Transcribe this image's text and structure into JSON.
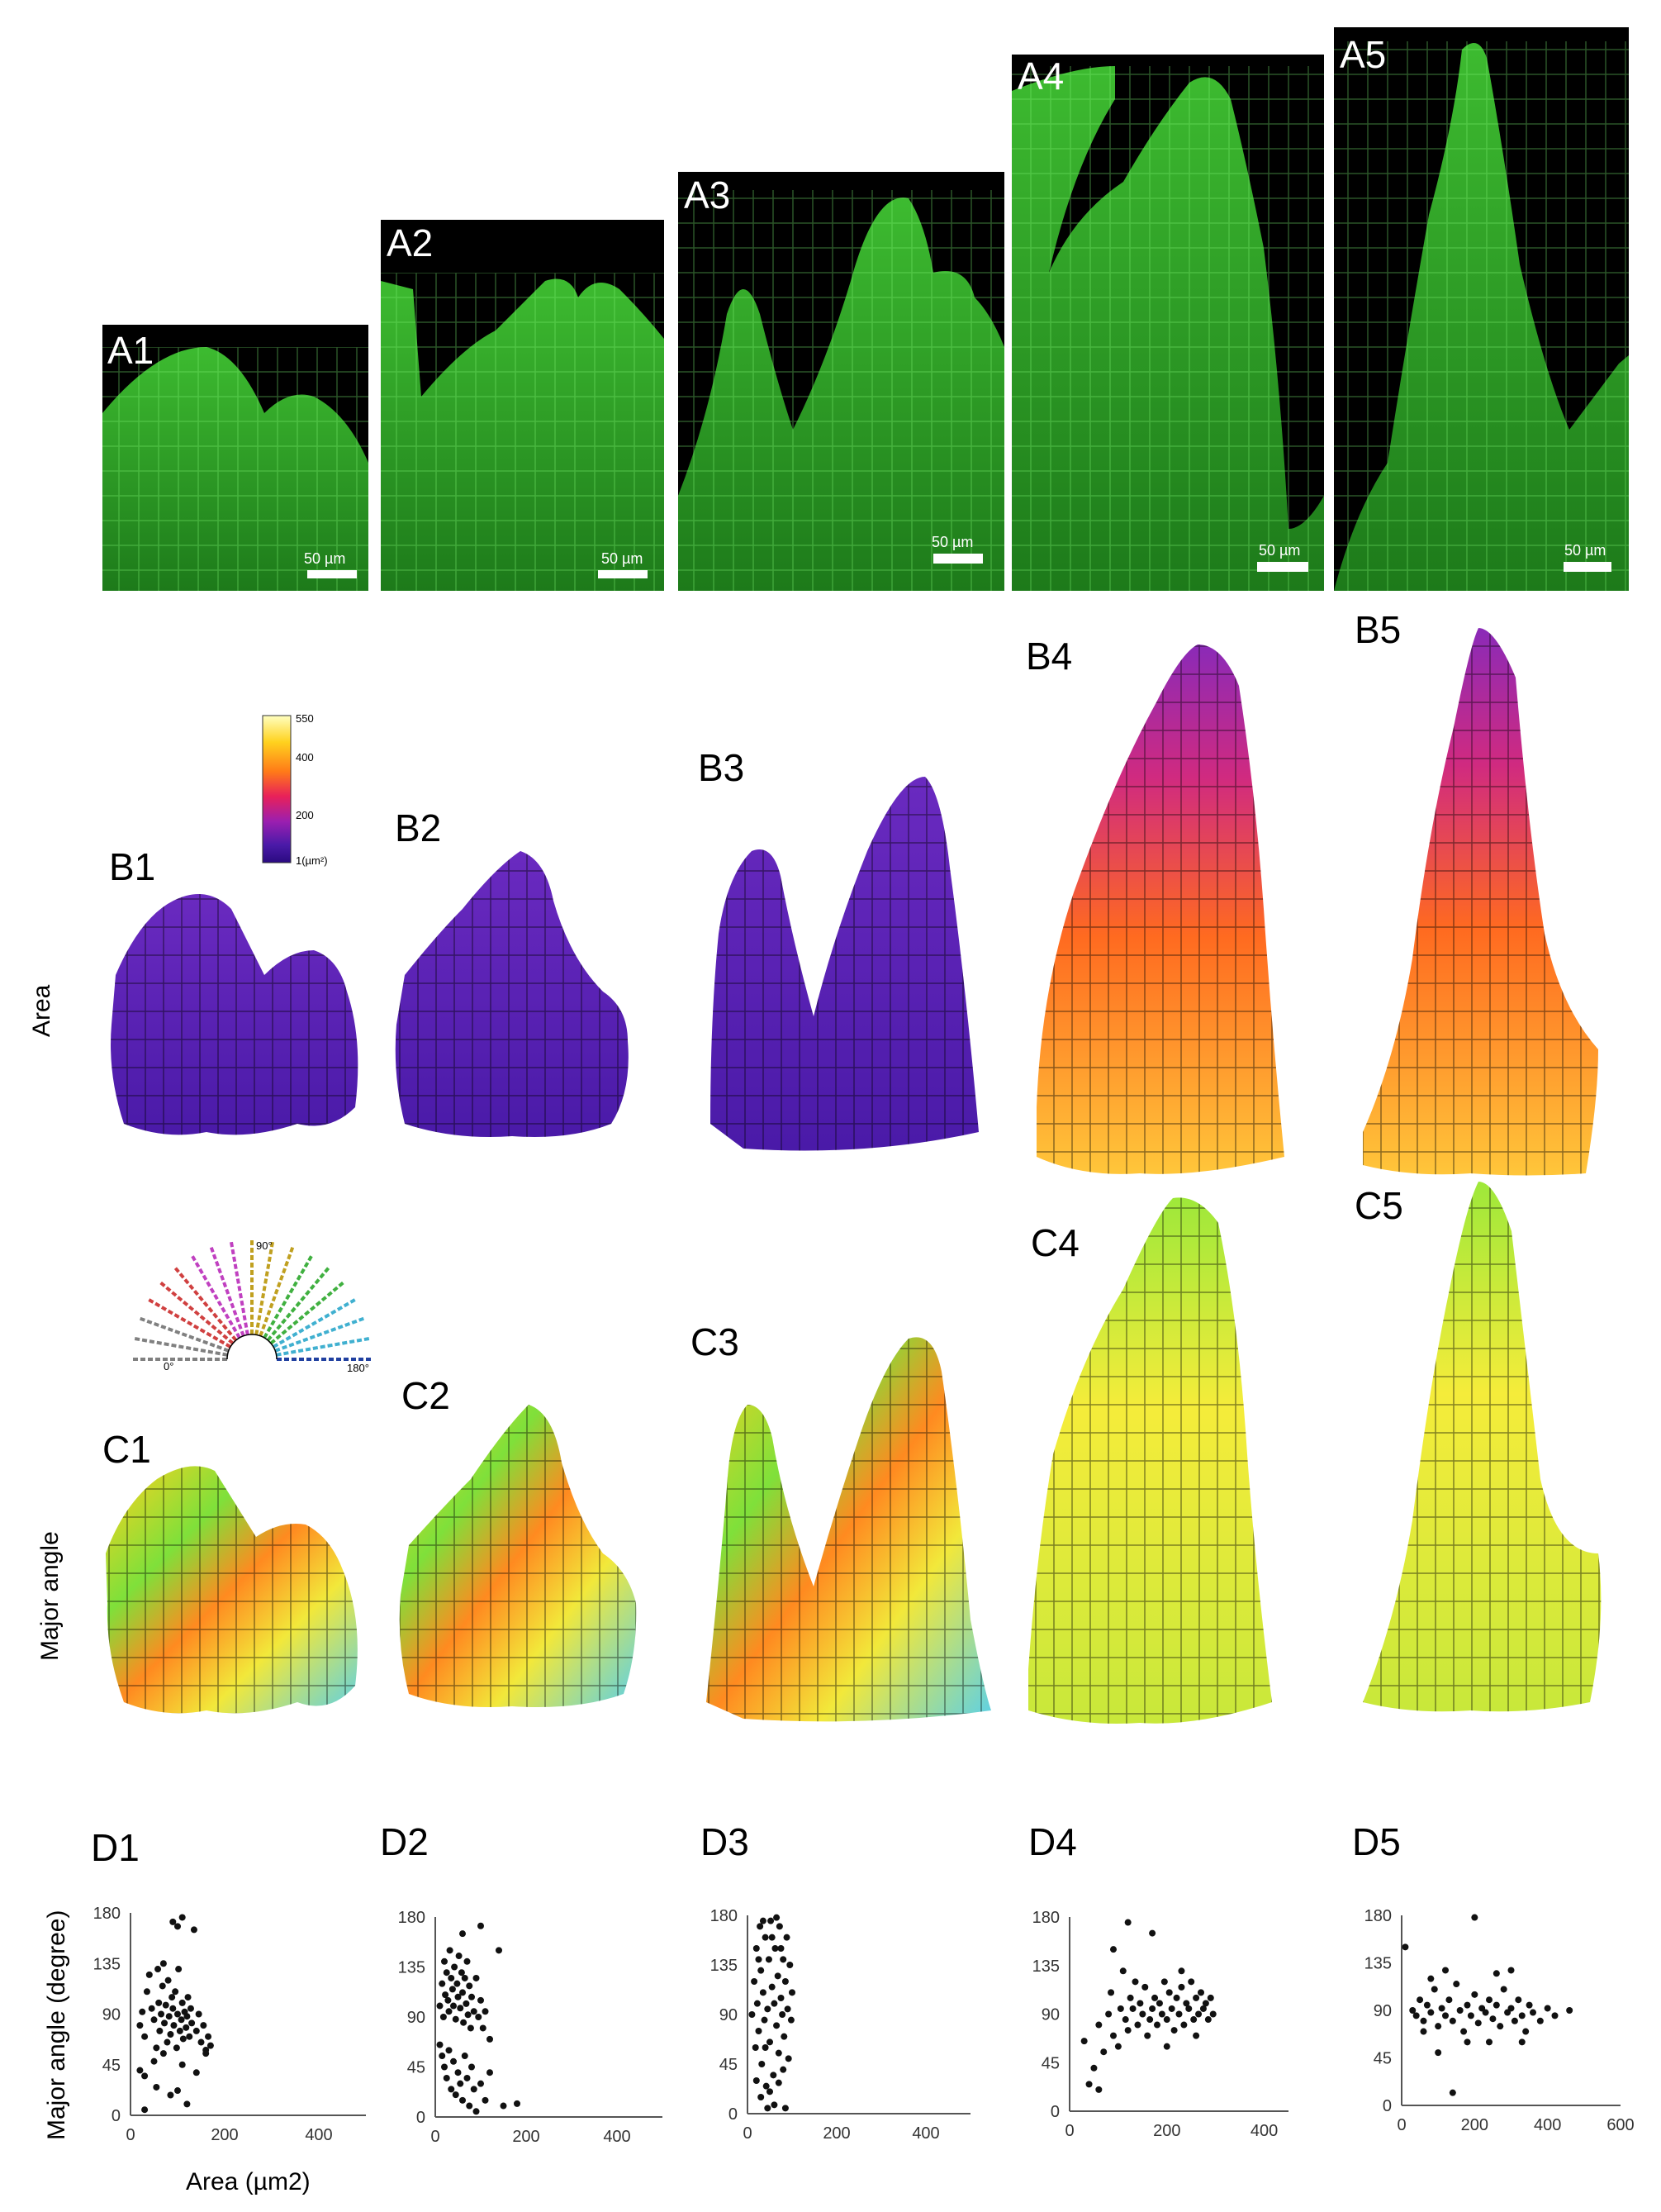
{
  "panels": {
    "A": [
      {
        "label": "A1",
        "scale": "50 µm"
      },
      {
        "label": "A2",
        "scale": "50 µm"
      },
      {
        "label": "A3",
        "scale": "50 µm"
      },
      {
        "label": "A4",
        "scale": "50 µm"
      },
      {
        "label": "A5",
        "scale": "50 µm"
      }
    ],
    "B": [
      "B1",
      "B2",
      "B3",
      "B4",
      "B5"
    ],
    "C": [
      "C1",
      "C2",
      "C3",
      "C4",
      "C5"
    ],
    "D": [
      "D1",
      "D2",
      "D3",
      "D4",
      "D5"
    ]
  },
  "row_labels": {
    "area": "Area",
    "major_angle": "Major angle"
  },
  "area_colorbar": {
    "ticks": [
      "550",
      "400",
      "200",
      "1(µm²)"
    ],
    "colors": [
      "#ffffc0",
      "#ffd21e",
      "#ff7a18",
      "#e8205a",
      "#9b1fb0",
      "#4a1aa8",
      "#2a0a80"
    ]
  },
  "angle_fan": {
    "ticks": [
      "0°",
      "90°",
      "180°"
    ]
  },
  "colors": {
    "fluorescence": "#2fa82a",
    "fluorescence_dark": "#0c3a0a",
    "area_low": "#5a22b8",
    "area_high": "#ffb21e",
    "point": "#111111"
  },
  "chart_data": [
    {
      "id": "D1",
      "type": "scatter",
      "xlabel": "Area (µm2)",
      "ylabel": "Major angle (degree)",
      "xlim": [
        0,
        500
      ],
      "ylim": [
        0,
        180
      ],
      "xticks": [
        0,
        200,
        400
      ],
      "yticks": [
        0,
        45,
        90,
        135,
        180
      ],
      "points": [
        [
          20,
          80
        ],
        [
          25,
          92
        ],
        [
          30,
          70
        ],
        [
          35,
          110
        ],
        [
          40,
          125
        ],
        [
          45,
          95
        ],
        [
          50,
          85
        ],
        [
          55,
          60
        ],
        [
          58,
          130
        ],
        [
          60,
          100
        ],
        [
          62,
          75
        ],
        [
          65,
          90
        ],
        [
          68,
          115
        ],
        [
          70,
          135
        ],
        [
          72,
          82
        ],
        [
          75,
          98
        ],
        [
          78,
          65
        ],
        [
          80,
          120
        ],
        [
          82,
          88
        ],
        [
          85,
          72
        ],
        [
          88,
          105
        ],
        [
          90,
          95
        ],
        [
          92,
          80
        ],
        [
          95,
          110
        ],
        [
          98,
          60
        ],
        [
          100,
          90
        ],
        [
          102,
          130
        ],
        [
          105,
          75
        ],
        [
          108,
          85
        ],
        [
          110,
          100
        ],
        [
          112,
          68
        ],
        [
          115,
          92
        ],
        [
          118,
          78
        ],
        [
          120,
          88
        ],
        [
          122,
          105
        ],
        [
          125,
          70
        ],
        [
          128,
          95
        ],
        [
          130,
          82
        ],
        [
          135,
          165
        ],
        [
          140,
          75
        ],
        [
          145,
          90
        ],
        [
          150,
          65
        ],
        [
          155,
          80
        ],
        [
          160,
          58
        ],
        [
          165,
          70
        ],
        [
          170,
          62
        ],
        [
          90,
          172
        ],
        [
          100,
          168
        ],
        [
          110,
          176
        ],
        [
          20,
          40
        ],
        [
          30,
          35
        ],
        [
          50,
          48
        ],
        [
          55,
          25
        ],
        [
          70,
          55
        ],
        [
          85,
          18
        ],
        [
          100,
          22
        ],
        [
          120,
          10
        ],
        [
          110,
          45
        ],
        [
          140,
          38
        ],
        [
          160,
          55
        ],
        [
          30,
          5
        ]
      ]
    },
    {
      "id": "D2",
      "type": "scatter",
      "xlabel": "",
      "ylabel": "",
      "xlim": [
        0,
        500
      ],
      "ylim": [
        0,
        180
      ],
      "xticks": [
        0,
        200,
        400
      ],
      "yticks": [
        0,
        45,
        90,
        135,
        180
      ],
      "points": [
        [
          10,
          100
        ],
        [
          15,
          120
        ],
        [
          18,
          90
        ],
        [
          20,
          140
        ],
        [
          22,
          110
        ],
        [
          25,
          130
        ],
        [
          28,
          105
        ],
        [
          30,
          95
        ],
        [
          32,
          150
        ],
        [
          35,
          125
        ],
        [
          38,
          115
        ],
        [
          40,
          100
        ],
        [
          42,
          135
        ],
        [
          45,
          88
        ],
        [
          48,
          120
        ],
        [
          50,
          108
        ],
        [
          52,
          145
        ],
        [
          55,
          98
        ],
        [
          58,
          130
        ],
        [
          60,
          112
        ],
        [
          62,
          85
        ],
        [
          65,
          125
        ],
        [
          68,
          102
        ],
        [
          70,
          140
        ],
        [
          72,
          92
        ],
        [
          75,
          118
        ],
        [
          78,
          80
        ],
        [
          80,
          108
        ],
        [
          85,
          95
        ],
        [
          90,
          125
        ],
        [
          95,
          90
        ],
        [
          100,
          105
        ],
        [
          105,
          80
        ],
        [
          110,
          95
        ],
        [
          15,
          55
        ],
        [
          20,
          45
        ],
        [
          25,
          35
        ],
        [
          30,
          60
        ],
        [
          35,
          25
        ],
        [
          40,
          50
        ],
        [
          45,
          20
        ],
        [
          50,
          40
        ],
        [
          55,
          30
        ],
        [
          60,
          15
        ],
        [
          65,
          55
        ],
        [
          70,
          35
        ],
        [
          75,
          10
        ],
        [
          80,
          45
        ],
        [
          85,
          25
        ],
        [
          90,
          5
        ],
        [
          100,
          30
        ],
        [
          110,
          15
        ],
        [
          120,
          40
        ],
        [
          150,
          10
        ],
        [
          180,
          12
        ],
        [
          100,
          172
        ],
        [
          140,
          150
        ],
        [
          60,
          165
        ],
        [
          10,
          65
        ],
        [
          120,
          70
        ]
      ]
    },
    {
      "id": "D3",
      "type": "scatter",
      "xlabel": "",
      "ylabel": "",
      "xlim": [
        0,
        500
      ],
      "ylim": [
        0,
        180
      ],
      "xticks": [
        0,
        200,
        400
      ],
      "yticks": [
        0,
        45,
        90,
        135,
        180
      ],
      "points": [
        [
          10,
          90
        ],
        [
          15,
          120
        ],
        [
          18,
          60
        ],
        [
          20,
          150
        ],
        [
          22,
          100
        ],
        [
          25,
          75
        ],
        [
          28,
          170
        ],
        [
          30,
          130
        ],
        [
          32,
          45
        ],
        [
          35,
          110
        ],
        [
          38,
          85
        ],
        [
          40,
          160
        ],
        [
          42,
          25
        ],
        [
          45,
          95
        ],
        [
          48,
          140
        ],
        [
          50,
          65
        ],
        [
          52,
          175
        ],
        [
          55,
          115
        ],
        [
          58,
          35
        ],
        [
          60,
          100
        ],
        [
          62,
          150
        ],
        [
          65,
          80
        ],
        [
          68,
          125
        ],
        [
          70,
          55
        ],
        [
          72,
          170
        ],
        [
          75,
          105
        ],
        [
          78,
          90
        ],
        [
          80,
          140
        ],
        [
          82,
          70
        ],
        [
          85,
          120
        ],
        [
          88,
          160
        ],
        [
          90,
          95
        ],
        [
          92,
          50
        ],
        [
          95,
          135
        ],
        [
          98,
          85
        ],
        [
          100,
          110
        ],
        [
          30,
          15
        ],
        [
          45,
          5
        ],
        [
          60,
          8
        ],
        [
          20,
          30
        ],
        [
          50,
          20
        ],
        [
          70,
          28
        ],
        [
          80,
          40
        ],
        [
          35,
          175
        ],
        [
          65,
          178
        ],
        [
          85,
          5
        ],
        [
          25,
          140
        ],
        [
          55,
          160
        ],
        [
          75,
          150
        ],
        [
          40,
          60
        ]
      ]
    },
    {
      "id": "D4",
      "type": "scatter",
      "xlabel": "",
      "ylabel": "",
      "xlim": [
        0,
        450
      ],
      "ylim": [
        0,
        180
      ],
      "xticks": [
        0,
        200,
        400
      ],
      "yticks": [
        0,
        45,
        90,
        135,
        180
      ],
      "points": [
        [
          30,
          65
        ],
        [
          40,
          25
        ],
        [
          50,
          40
        ],
        [
          60,
          80
        ],
        [
          70,
          55
        ],
        [
          80,
          90
        ],
        [
          85,
          110
        ],
        [
          90,
          70
        ],
        [
          100,
          60
        ],
        [
          105,
          95
        ],
        [
          110,
          130
        ],
        [
          115,
          85
        ],
        [
          120,
          75
        ],
        [
          125,
          105
        ],
        [
          130,
          95
        ],
        [
          135,
          120
        ],
        [
          140,
          80
        ],
        [
          145,
          100
        ],
        [
          150,
          90
        ],
        [
          155,
          115
        ],
        [
          160,
          70
        ],
        [
          165,
          85
        ],
        [
          170,
          95
        ],
        [
          175,
          105
        ],
        [
          180,
          80
        ],
        [
          185,
          100
        ],
        [
          190,
          90
        ],
        [
          195,
          120
        ],
        [
          200,
          85
        ],
        [
          205,
          110
        ],
        [
          210,
          95
        ],
        [
          215,
          75
        ],
        [
          220,
          105
        ],
        [
          225,
          90
        ],
        [
          230,
          115
        ],
        [
          235,
          80
        ],
        [
          240,
          100
        ],
        [
          245,
          95
        ],
        [
          250,
          120
        ],
        [
          255,
          85
        ],
        [
          260,
          105
        ],
        [
          265,
          90
        ],
        [
          270,
          110
        ],
        [
          275,
          95
        ],
        [
          280,
          100
        ],
        [
          285,
          85
        ],
        [
          290,
          105
        ],
        [
          295,
          90
        ],
        [
          120,
          175
        ],
        [
          170,
          165
        ],
        [
          60,
          20
        ],
        [
          90,
          150
        ],
        [
          200,
          60
        ],
        [
          230,
          130
        ],
        [
          260,
          70
        ]
      ]
    },
    {
      "id": "D5",
      "type": "scatter",
      "xlabel": "",
      "ylabel": "",
      "xlim": [
        0,
        600
      ],
      "ylim": [
        0,
        180
      ],
      "xticks": [
        0,
        200,
        400,
        600
      ],
      "yticks": [
        0,
        45,
        90,
        135,
        180
      ],
      "points": [
        [
          10,
          150
        ],
        [
          30,
          90
        ],
        [
          40,
          85
        ],
        [
          50,
          100
        ],
        [
          60,
          80
        ],
        [
          70,
          95
        ],
        [
          80,
          88
        ],
        [
          90,
          110
        ],
        [
          100,
          75
        ],
        [
          110,
          92
        ],
        [
          120,
          85
        ],
        [
          130,
          100
        ],
        [
          140,
          80
        ],
        [
          150,
          115
        ],
        [
          160,
          90
        ],
        [
          170,
          70
        ],
        [
          180,
          95
        ],
        [
          190,
          85
        ],
        [
          200,
          105
        ],
        [
          210,
          78
        ],
        [
          220,
          92
        ],
        [
          230,
          88
        ],
        [
          240,
          100
        ],
        [
          250,
          82
        ],
        [
          260,
          95
        ],
        [
          270,
          75
        ],
        [
          280,
          110
        ],
        [
          290,
          88
        ],
        [
          300,
          92
        ],
        [
          310,
          80
        ],
        [
          320,
          100
        ],
        [
          330,
          85
        ],
        [
          340,
          70
        ],
        [
          350,
          95
        ],
        [
          360,
          88
        ],
        [
          380,
          80
        ],
        [
          400,
          92
        ],
        [
          420,
          85
        ],
        [
          460,
          90
        ],
        [
          200,
          178
        ],
        [
          140,
          12
        ],
        [
          100,
          50
        ],
        [
          240,
          60
        ],
        [
          300,
          128
        ],
        [
          120,
          128
        ],
        [
          180,
          60
        ],
        [
          80,
          120
        ],
        [
          260,
          125
        ],
        [
          330,
          60
        ],
        [
          60,
          70
        ]
      ]
    }
  ]
}
